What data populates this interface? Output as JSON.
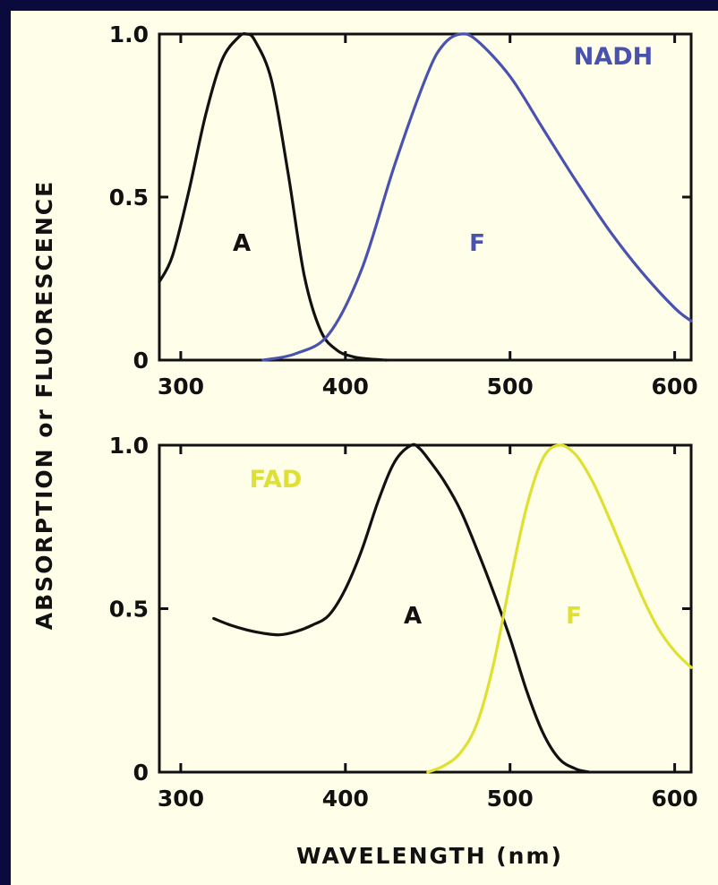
{
  "colors": {
    "background": "#0a0a3c",
    "plot_bg": "#fefee9",
    "axes": "#111111",
    "nadh": "#4a52b0",
    "fad": "#e0e032",
    "absorption": "#111111"
  },
  "figure": {
    "ylabel": "ABSORPTION or FLUORESCENCE",
    "xlabel": "WAVELENGTH (nm)"
  },
  "chart_data": [
    {
      "type": "line",
      "title": "NADH",
      "xlim": [
        287,
        610
      ],
      "ylim": [
        0,
        1.0
      ],
      "xticks": [
        300,
        400,
        500,
        600
      ],
      "xtick_labels": [
        "300",
        "400",
        "500",
        "600"
      ],
      "yticks": [
        0,
        0.5,
        1.0
      ],
      "ytick_labels": [
        "0",
        "0.5",
        "1.0"
      ],
      "grid": false,
      "series": [
        {
          "label": "A",
          "color": "#111111",
          "x": [
            287,
            295,
            305,
            315,
            325,
            335,
            340,
            345,
            355,
            365,
            375,
            385,
            395,
            405,
            415,
            425
          ],
          "y": [
            0.24,
            0.32,
            0.52,
            0.75,
            0.92,
            0.99,
            1.0,
            0.98,
            0.86,
            0.58,
            0.26,
            0.09,
            0.03,
            0.01,
            0.003,
            0.0
          ]
        },
        {
          "label": "F",
          "color": "#4a52b0",
          "x": [
            350,
            370,
            390,
            410,
            430,
            450,
            460,
            470,
            480,
            500,
            520,
            540,
            560,
            580,
            600,
            610
          ],
          "y": [
            0.0,
            0.02,
            0.08,
            0.28,
            0.6,
            0.88,
            0.97,
            1.0,
            0.98,
            0.87,
            0.71,
            0.55,
            0.4,
            0.27,
            0.16,
            0.12
          ]
        }
      ]
    },
    {
      "type": "line",
      "title": "FAD",
      "xlim": [
        287,
        610
      ],
      "ylim": [
        0,
        1.0
      ],
      "xticks": [
        300,
        400,
        500,
        600
      ],
      "xtick_labels": [
        "300",
        "400",
        "500",
        "600"
      ],
      "yticks": [
        0,
        0.5,
        1.0
      ],
      "ytick_labels": [
        "0",
        "0.5",
        "1.0"
      ],
      "grid": false,
      "series": [
        {
          "label": "A",
          "color": "#111111",
          "x": [
            320,
            330,
            340,
            350,
            360,
            370,
            380,
            390,
            400,
            410,
            420,
            430,
            440,
            445,
            450,
            460,
            470,
            480,
            490,
            500,
            510,
            520,
            530,
            540,
            548
          ],
          "y": [
            0.47,
            0.45,
            0.435,
            0.425,
            0.42,
            0.43,
            0.45,
            0.48,
            0.56,
            0.68,
            0.83,
            0.95,
            1.0,
            0.99,
            0.96,
            0.89,
            0.8,
            0.68,
            0.55,
            0.41,
            0.25,
            0.12,
            0.04,
            0.01,
            0.0
          ]
        },
        {
          "label": "F",
          "color": "#e0e032",
          "x": [
            450,
            460,
            470,
            480,
            490,
            500,
            510,
            520,
            530,
            540,
            550,
            560,
            570,
            580,
            590,
            600,
            610
          ],
          "y": [
            0.0,
            0.02,
            0.06,
            0.15,
            0.33,
            0.58,
            0.81,
            0.96,
            1.0,
            0.97,
            0.89,
            0.78,
            0.66,
            0.54,
            0.44,
            0.37,
            0.32
          ]
        }
      ]
    }
  ]
}
